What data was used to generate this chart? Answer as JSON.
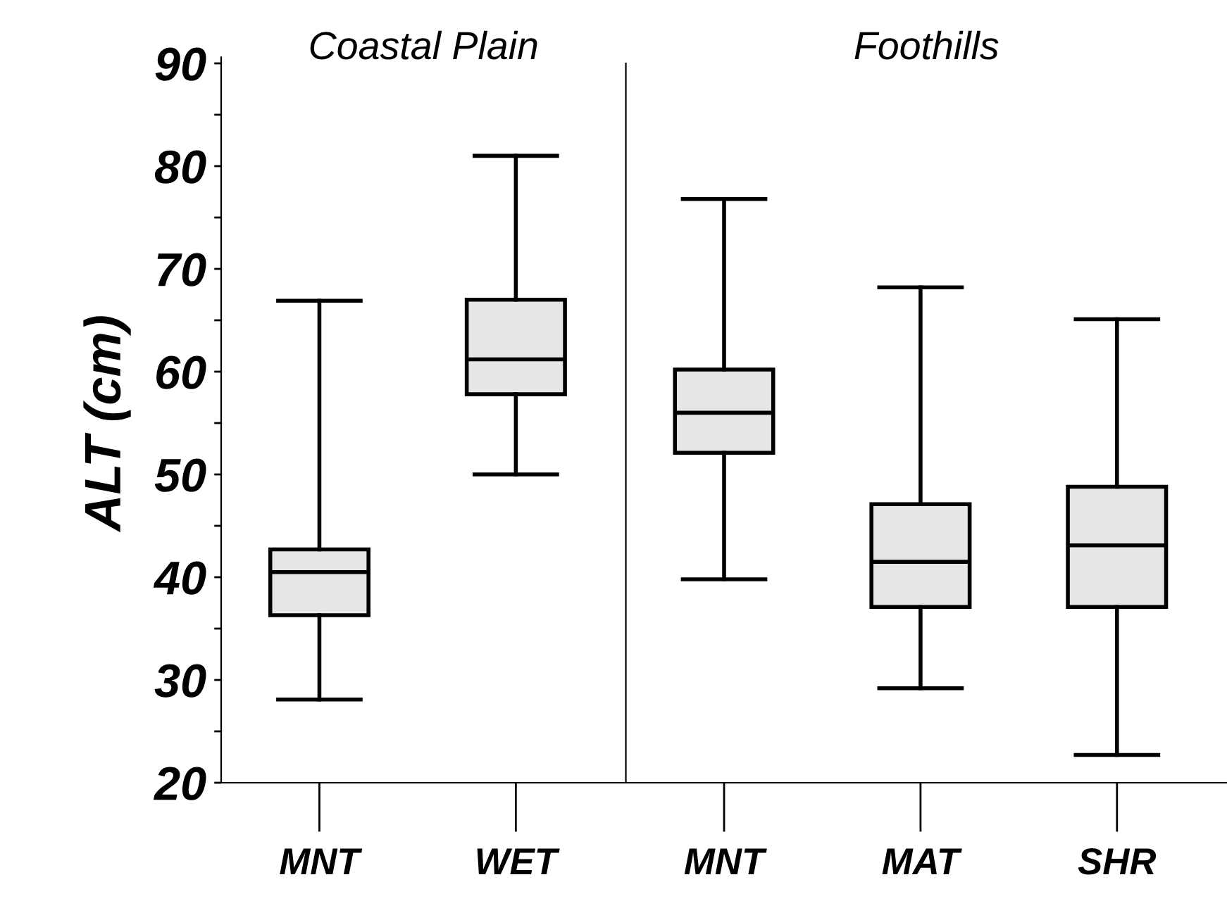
{
  "chart_data": [
    {
      "type": "box",
      "title": "Coastal Plain",
      "ylabel": "ALT (cm)",
      "categories": [
        "MNT",
        "WET"
      ],
      "color": "#e6e6e6",
      "boxes": [
        {
          "low": 28.1,
          "q1": 36.3,
          "median": 40.5,
          "q3": 42.7,
          "high": 66.9
        },
        {
          "low": 50,
          "q1": 57.8,
          "median": 61.2,
          "q3": 67,
          "high": 81
        }
      ],
      "ylim": [
        20,
        90
      ],
      "yticks": [
        20,
        {
          "value": 25,
          "label": null
        },
        30,
        {
          "value": 35,
          "label": null
        },
        40,
        {
          "value": 45,
          "label": null
        },
        50,
        {
          "value": 55,
          "label": null
        },
        60,
        {
          "value": 65,
          "label": null
        },
        70,
        {
          "value": 75,
          "label": null
        },
        80,
        {
          "value": 85,
          "label": null
        },
        90
      ],
      "grid": false
    },
    {
      "type": "box",
      "title": "Foothills",
      "categories": [
        "MNT",
        "MAT",
        "SHR"
      ],
      "color": "#e6e6e6",
      "boxes": [
        {
          "low": 39.8,
          "q1": 52.1,
          "median": 56,
          "q3": 60.2,
          "high": 76.8
        },
        {
          "low": 29.2,
          "q1": 37.1,
          "median": 41.5,
          "q3": 47.1,
          "high": 68.2
        },
        {
          "low": 22.7,
          "q1": 37.1,
          "median": 43.1,
          "q3": 48.8,
          "high": 65.1
        }
      ],
      "ylim": [
        20,
        90
      ],
      "tick_labels": "x",
      "grid": false
    }
  ]
}
